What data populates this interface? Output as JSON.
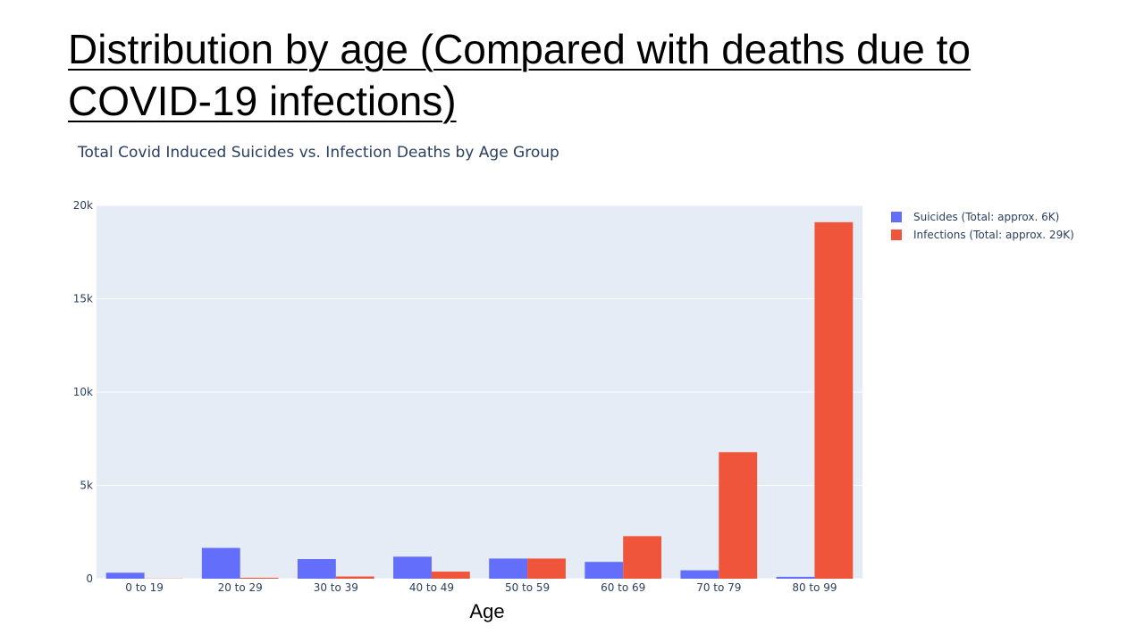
{
  "slide": {
    "title": "Distribution by age (Compared with deaths due to COVID-19 infections)"
  },
  "chart_data": {
    "type": "bar",
    "title": "Total Covid Induced Suicides vs. Infection Deaths by Age Group",
    "xlabel": "Age",
    "ylabel": "",
    "categories": [
      "0 to 19",
      "20 to 29",
      "30 to 39",
      "40 to 49",
      "50 to 59",
      "60 to 69",
      "70 to 79",
      "80 to 99"
    ],
    "series": [
      {
        "name": "Suicides (Total: approx. 6K)",
        "color": "#636efa",
        "values": [
          320,
          1650,
          1050,
          1180,
          1080,
          900,
          450,
          100
        ]
      },
      {
        "name": "Infections (Total: approx. 29K)",
        "color": "#ef553b",
        "values": [
          10,
          50,
          120,
          380,
          1080,
          2280,
          6780,
          19100
        ]
      }
    ],
    "ylim": [
      0,
      20000
    ],
    "yticks": [
      0,
      5000,
      10000,
      15000,
      20000
    ],
    "ytick_labels": [
      "0",
      "5k",
      "10k",
      "15k",
      "20k"
    ],
    "grid": true,
    "legend_position": "top-right",
    "plot_background": "#e5ecf6"
  }
}
